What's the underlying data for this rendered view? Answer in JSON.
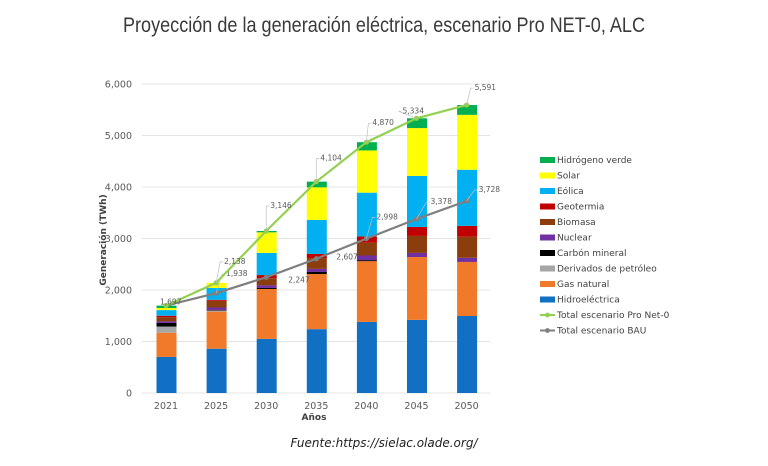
{
  "title": "Proyección de la generación eléctrica, escenario Pro NET-0, ALC",
  "source": "Fuente:https://sielac.olade.org/",
  "chart_data": {
    "type": "bar",
    "stacked": true,
    "title": "Proyección de la generación eléctrica, escenario Pro NET-0, ALC",
    "xlabel": "Años",
    "ylabel": "Generación (TWh)",
    "ylim": [
      0,
      6000
    ],
    "yticks": [
      0,
      1000,
      2000,
      3000,
      4000,
      5000,
      6000
    ],
    "ytick_labels": [
      "0",
      "1,000",
      "2,000",
      "3,000",
      "4,000",
      "5,000",
      "6,000"
    ],
    "grid": true,
    "legend_position": "right",
    "categories": [
      "2021",
      "2025",
      "2030",
      "2035",
      "2040",
      "2045",
      "2050"
    ],
    "series": [
      {
        "name": "Hidroeléctrica",
        "color": "#1170c4",
        "values": [
          700,
          860,
          1050,
          1240,
          1380,
          1420,
          1495
        ]
      },
      {
        "name": "Gas natural",
        "color": "#f07a2a",
        "values": [
          470,
          720,
          970,
          1070,
          1180,
          1220,
          1050
        ]
      },
      {
        "name": "Derivados de petróleo",
        "color": "#a6a6a6",
        "values": [
          120,
          20,
          0,
          0,
          0,
          0,
          0
        ]
      },
      {
        "name": "Carbón mineral",
        "color": "#000000",
        "values": [
          70,
          10,
          20,
          40,
          20,
          0,
          0
        ]
      },
      {
        "name": "Nuclear",
        "color": "#7030a0",
        "values": [
          30,
          50,
          50,
          60,
          90,
          80,
          80
        ]
      },
      {
        "name": "Biomasa",
        "color": "#8b3d0e",
        "values": [
          80,
          130,
          140,
          210,
          250,
          330,
          410
        ]
      },
      {
        "name": "Geotermia",
        "color": "#c00000",
        "values": [
          30,
          20,
          60,
          80,
          120,
          175,
          210
        ]
      },
      {
        "name": "Eólica",
        "color": "#00b0f0",
        "values": [
          110,
          230,
          430,
          660,
          850,
          990,
          1090
        ]
      },
      {
        "name": "Solar",
        "color": "#ffff00",
        "values": [
          40,
          98,
          400,
          634,
          820,
          929,
          1066
        ]
      },
      {
        "name": "Hidrógeno verde",
        "color": "#00b050",
        "values": [
          47,
          0,
          26,
          110,
          160,
          190,
          190
        ]
      }
    ],
    "lines": [
      {
        "name": "Total escenario Pro Net-0",
        "color": "#92d050",
        "values": [
          1697,
          2138,
          3146,
          4104,
          4870,
          5334,
          5591
        ],
        "labels": [
          "1,697",
          "2,138",
          "3,146",
          "4,104",
          "4,870",
          "5,334",
          "5,591"
        ]
      },
      {
        "name": "Total escenario BAU",
        "color": "#7f7f7f",
        "values": [
          1697,
          1938,
          2247,
          2607,
          2998,
          3378,
          3728
        ],
        "labels": [
          "",
          "1,938",
          "2,247",
          "2,607",
          "2,998",
          "3,378",
          "3,728"
        ]
      }
    ],
    "legend_order": [
      "Hidrógeno verde",
      "Solar",
      "Eólica",
      "Geotermia",
      "Biomasa",
      "Nuclear",
      "Carbón mineral",
      "Derivados de petróleo",
      "Gas natural",
      "Hidroeléctrica",
      "Total escenario Pro Net-0",
      "Total escenario BAU"
    ]
  }
}
